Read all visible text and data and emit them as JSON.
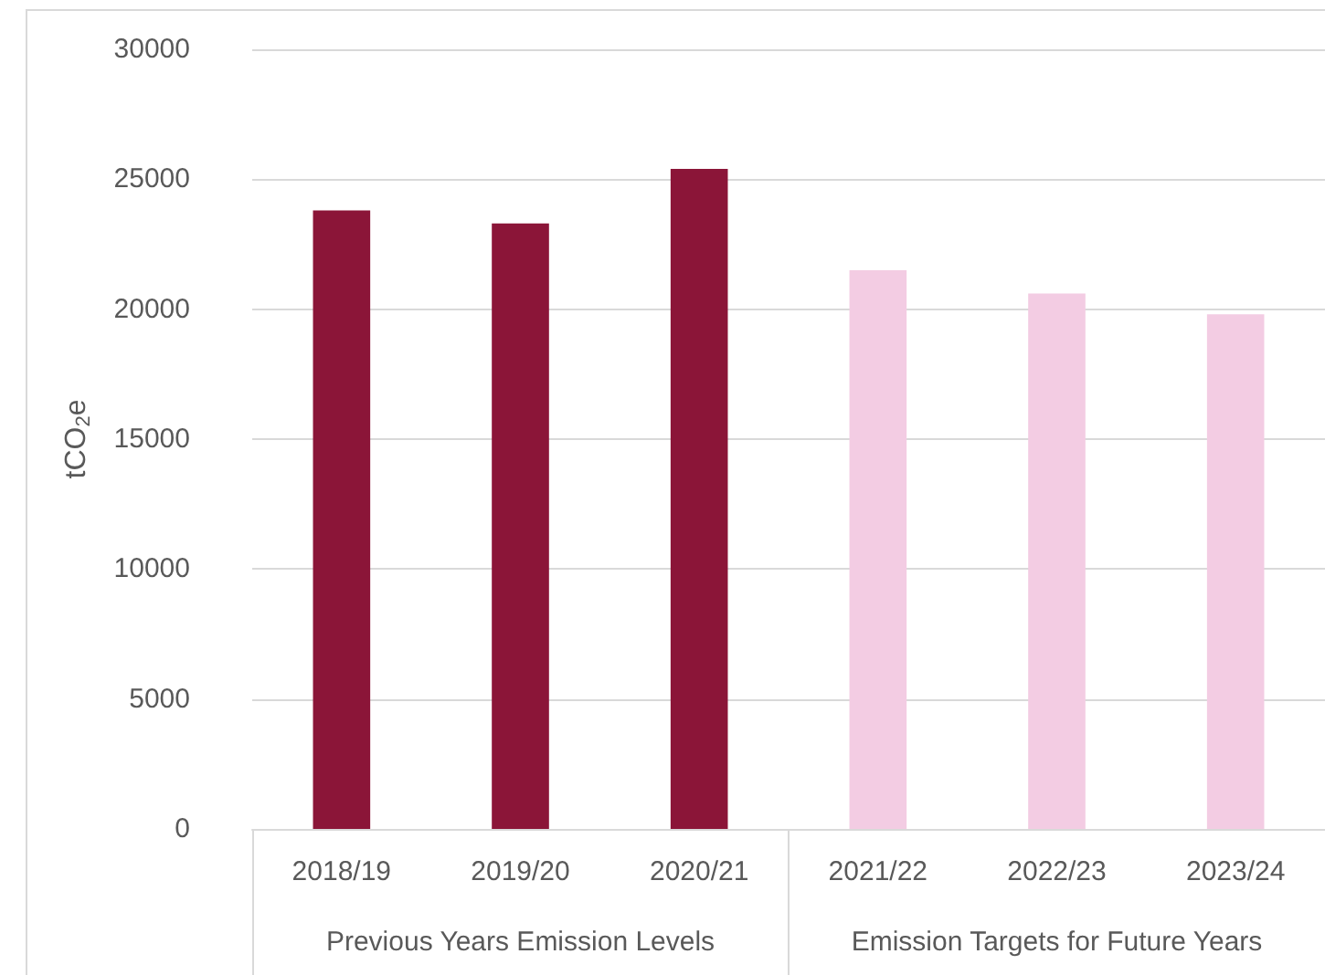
{
  "chart_data": {
    "type": "bar",
    "ylabel": "tCO$_{2}$e",
    "categories": [
      "2018/19",
      "2019/20",
      "2020/21",
      "2021/22",
      "2022/23",
      "2023/24"
    ],
    "values": [
      23800,
      23300,
      25400,
      21500,
      20600,
      19800
    ],
    "colors": [
      "#8b1538",
      "#8b1538",
      "#8b1538",
      "#f3cce3",
      "#f3cce3",
      "#f3cce3"
    ],
    "ylim": [
      0,
      30000
    ],
    "yticks": [
      0,
      5000,
      10000,
      15000,
      20000,
      25000,
      30000
    ],
    "grid": "y",
    "annotations": [
      "Previous Years Emission Levels",
      "Emission Targets for Future Years"
    ]
  }
}
